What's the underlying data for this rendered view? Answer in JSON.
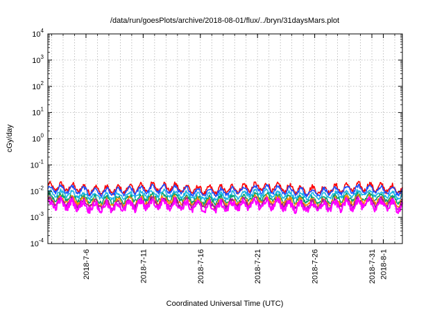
{
  "chart_data": {
    "type": "line",
    "title": "/data/run/goesPlots/archive/2018-08-01/flux/../bryn/31daysMars.plot",
    "xlabel": "Coordinated Universal Time (UTC)",
    "ylabel": "cGy/day",
    "y_scale": "log",
    "ylim": [
      0.0001,
      10000
    ],
    "xlim": [
      "2018-07-02T16:00",
      "2018-08-02T16:00"
    ],
    "grid": true,
    "y_ticks": [
      {
        "base": "10",
        "exp": "-4"
      },
      {
        "base": "10",
        "exp": "-3"
      },
      {
        "base": "10",
        "exp": "-2"
      },
      {
        "base": "10",
        "exp": "-1"
      },
      {
        "base": "10",
        "exp": "0"
      },
      {
        "base": "10",
        "exp": "1"
      },
      {
        "base": "10",
        "exp": "2"
      },
      {
        "base": "10",
        "exp": "3"
      },
      {
        "base": "10",
        "exp": "4"
      }
    ],
    "x_ticks": [
      {
        "label": "2018-7-6",
        "date": "2018-07-06"
      },
      {
        "label": "2018-7-11",
        "date": "2018-07-11"
      },
      {
        "label": "2018-7-16",
        "date": "2018-07-16"
      },
      {
        "label": "2018-7-21",
        "date": "2018-07-21"
      },
      {
        "label": "2018-7-26",
        "date": "2018-07-26"
      },
      {
        "label": "2018-7-31",
        "date": "2018-07-31"
      },
      {
        "label": "2018-8-1",
        "date": "2018-08-01"
      }
    ],
    "series": [
      {
        "color": "#ff0000",
        "level": 0.0125,
        "swing": 0.28,
        "noise": 0.09
      },
      {
        "color": "#1a4fff",
        "level": 0.0105,
        "swing": 0.26,
        "noise": 0.07
      },
      {
        "color": "#1ab4e6",
        "level": 0.0072,
        "swing": 0.22,
        "noise": 0.07
      },
      {
        "color": "#00a070",
        "level": 0.0052,
        "swing": 0.24,
        "noise": 0.08
      },
      {
        "color": "#ff8800",
        "level": 0.004,
        "swing": 0.26,
        "noise": 0.1
      },
      {
        "color": "#9a1a9a",
        "level": 0.0034,
        "swing": 0.28,
        "noise": 0.1
      },
      {
        "color": "#ff00ff",
        "level": 0.0028,
        "swing": 0.3,
        "noise": 0.13
      }
    ]
  }
}
